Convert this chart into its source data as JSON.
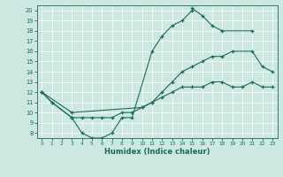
{
  "xlabel": "Humidex (Indice chaleur)",
  "xlim": [
    -0.5,
    23.5
  ],
  "ylim": [
    7.5,
    20.5
  ],
  "yticks": [
    8,
    9,
    10,
    11,
    12,
    13,
    14,
    15,
    16,
    17,
    18,
    19,
    20
  ],
  "xticks": [
    0,
    1,
    2,
    3,
    4,
    5,
    6,
    7,
    8,
    9,
    10,
    11,
    12,
    13,
    14,
    15,
    16,
    17,
    18,
    19,
    20,
    21,
    22,
    23
  ],
  "bg_color": "#cce8e0",
  "line_color": "#1a6b5a",
  "grid_color": "#b8d8d0",
  "line1_x": [
    0,
    1,
    3,
    4,
    5,
    6,
    7,
    8,
    9,
    11,
    12,
    13,
    14,
    15,
    15,
    16,
    17,
    18,
    21
  ],
  "line1_y": [
    12,
    11,
    9.5,
    8,
    7.5,
    7.5,
    8,
    9.5,
    9.5,
    16,
    17.5,
    18.5,
    19,
    20,
    20.2,
    19.5,
    18.5,
    18,
    18
  ],
  "line2_x": [
    0,
    3,
    10,
    11,
    12,
    13,
    14,
    15,
    16,
    17,
    18,
    19,
    21,
    22,
    23
  ],
  "line2_y": [
    12,
    10,
    10.5,
    11,
    12,
    13,
    14,
    14.5,
    15,
    15.5,
    15.5,
    16,
    16,
    14.5,
    14
  ],
  "line3_x": [
    0,
    1,
    3,
    4,
    5,
    6,
    7,
    8,
    9,
    10,
    11,
    12,
    13,
    14,
    15,
    16,
    17,
    18,
    19,
    20,
    21,
    22,
    23
  ],
  "line3_y": [
    12,
    11,
    9.5,
    9.5,
    9.5,
    9.5,
    9.5,
    10,
    10,
    10.5,
    11,
    11.5,
    12,
    12.5,
    12.5,
    12.5,
    13,
    13,
    12.5,
    12.5,
    13,
    12.5,
    12.5
  ]
}
